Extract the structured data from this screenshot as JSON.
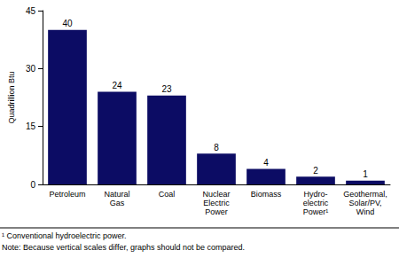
{
  "chart_data": {
    "type": "bar",
    "ylabel": "Quadrillion Btu",
    "categories": [
      "Petroleum",
      "Natural Gas",
      "Coal",
      "Nuclear Electric Power",
      "Biomass",
      "Hydro-electric Power¹",
      "Geothermal, Solar/PV, Wind"
    ],
    "values": [
      40,
      24,
      23,
      8,
      4,
      2,
      1
    ],
    "color": "#0c0c64",
    "ylim": [
      0,
      45
    ],
    "yticks": [
      0,
      15,
      30,
      45
    ],
    "grid": false,
    "data_labels": true,
    "annotations": [
      "¹ Conventional hydroelectric power.",
      "Note: Because vertical scales differ, graphs should not be compared."
    ]
  }
}
